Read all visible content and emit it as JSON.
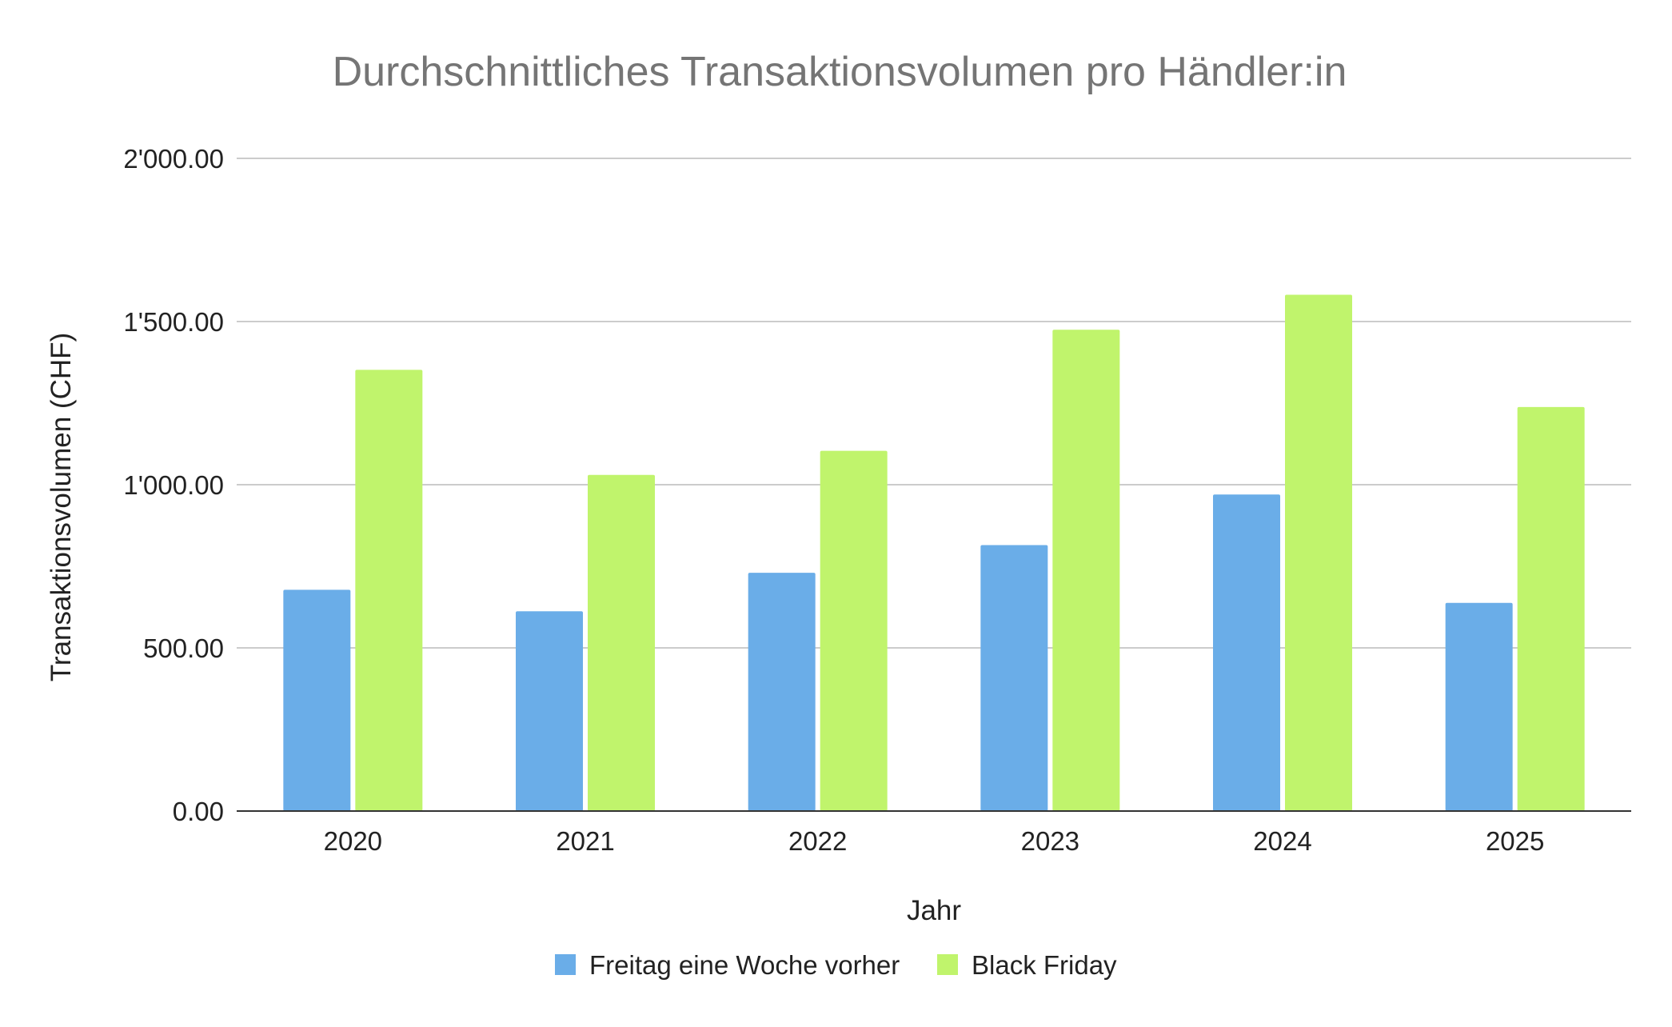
{
  "chart_data": {
    "type": "bar",
    "title": "Durchschnittliches Transaktionsvolumen pro Händler:in",
    "xlabel": "Jahr",
    "ylabel": "Transaktionsvolumen (CHF)",
    "categories": [
      "2020",
      "2021",
      "2022",
      "2023",
      "2024",
      "2025"
    ],
    "series": [
      {
        "name": "Freitag eine Woche vorher",
        "color": "#6aade8",
        "values": [
          678,
          612,
          730,
          815,
          970,
          638
        ]
      },
      {
        "name": "Black Friday",
        "color": "#c0f46c",
        "values": [
          1352,
          1030,
          1104,
          1475,
          1582,
          1238
        ]
      }
    ],
    "ylim": [
      0,
      2000
    ],
    "yticks": [
      0,
      500,
      1000,
      1500,
      2000
    ],
    "ytick_labels": [
      "0.00",
      "500.00",
      "1'000.00",
      "1'500.00",
      "2'000.00"
    ],
    "grid": true,
    "legend_position": "bottom"
  }
}
